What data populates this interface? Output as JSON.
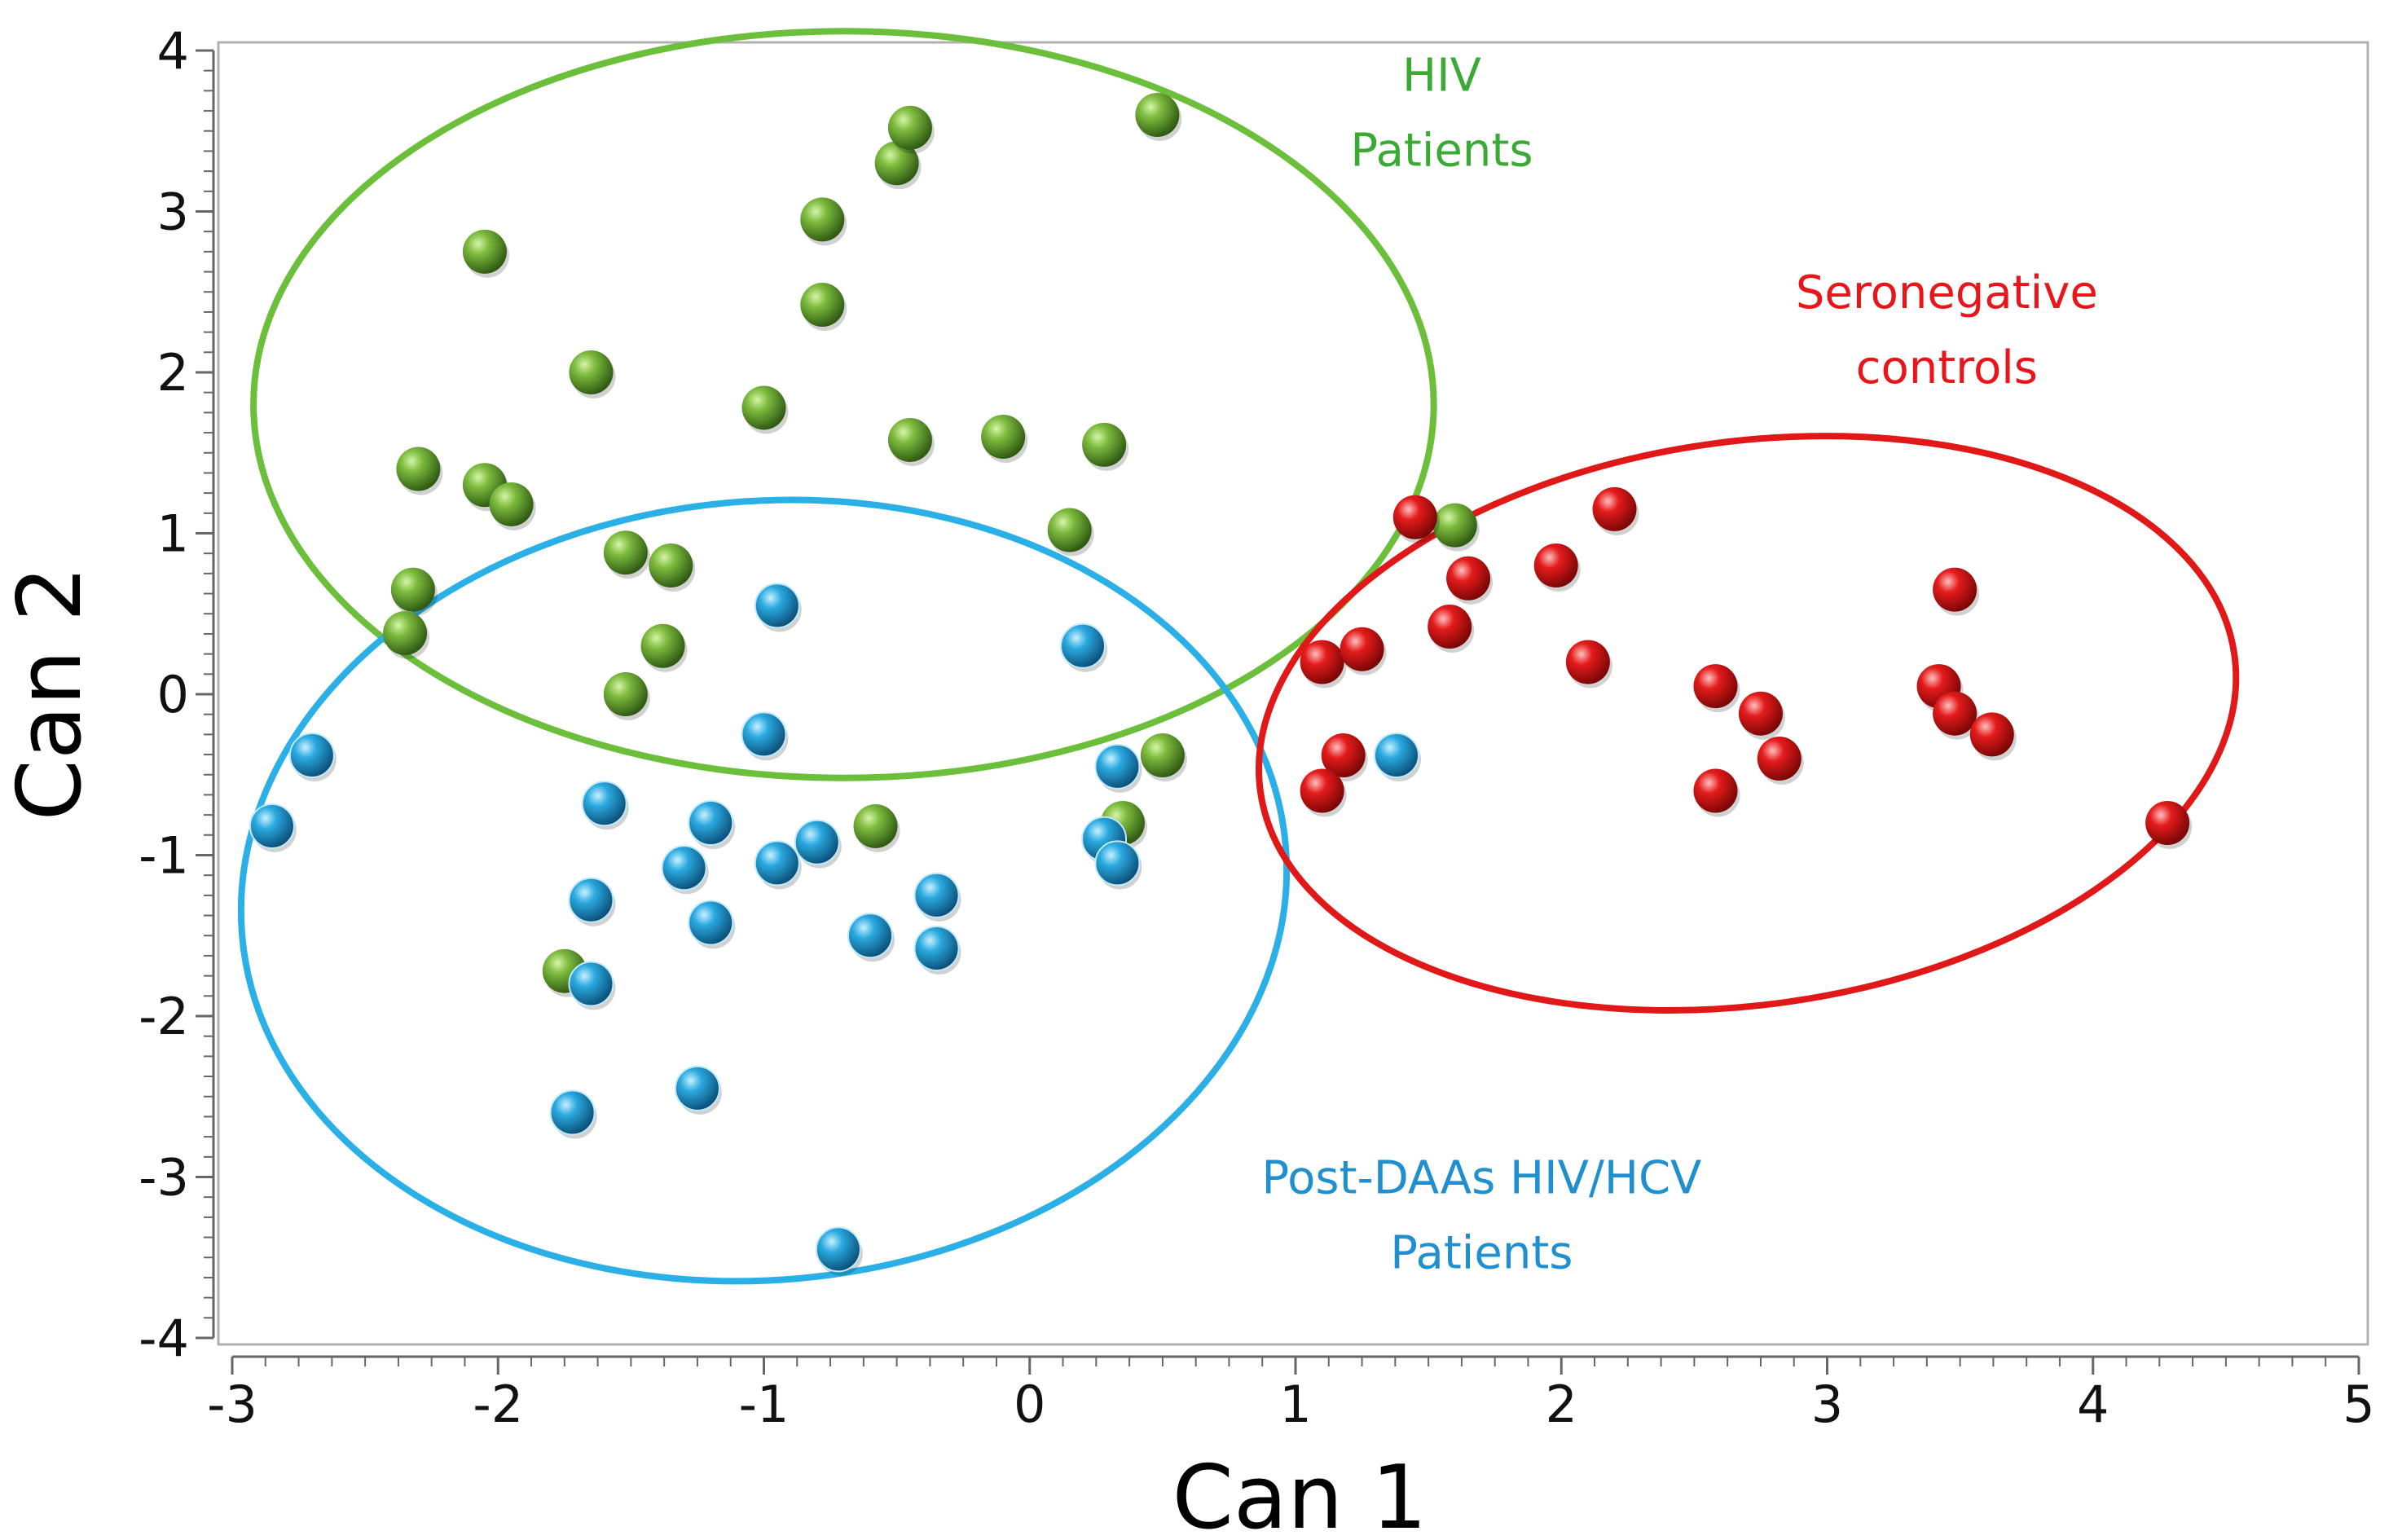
{
  "chart_data": {
    "type": "scatter",
    "xlabel": "Can 1",
    "ylabel": "Can 2",
    "xlim": [
      -3,
      5
    ],
    "ylim": [
      -4,
      4
    ],
    "xticks": [
      "-3",
      "-2",
      "-1",
      "0",
      "1",
      "2",
      "3",
      "4",
      "5"
    ],
    "yticks": [
      "4",
      "3",
      "2",
      "1",
      "0",
      "-1",
      "-2",
      "-3",
      "-4"
    ],
    "grid": false,
    "series": [
      {
        "name": "HIV Patients",
        "label_lines": [
          "HIV",
          "Patients"
        ],
        "color": "#5a9a2a",
        "label_color": "#3aaa35",
        "ellipse_color": "#6bbf3a",
        "points": [
          [
            -2.05,
            2.75
          ],
          [
            -1.65,
            2.0
          ],
          [
            -2.3,
            1.4
          ],
          [
            -2.05,
            1.3
          ],
          [
            -1.95,
            1.18
          ],
          [
            -2.32,
            0.65
          ],
          [
            -2.35,
            0.38
          ],
          [
            -1.52,
            0.88
          ],
          [
            -1.35,
            0.8
          ],
          [
            -1.38,
            0.3
          ],
          [
            -1.52,
            0.0
          ],
          [
            -1.0,
            1.78
          ],
          [
            -0.78,
            2.95
          ],
          [
            -0.78,
            2.42
          ],
          [
            -0.5,
            3.3
          ],
          [
            -0.45,
            3.52
          ],
          [
            -0.45,
            1.58
          ],
          [
            -0.1,
            1.6
          ],
          [
            0.28,
            1.55
          ],
          [
            0.15,
            1.02
          ],
          [
            0.48,
            3.6
          ],
          [
            1.6,
            1.05
          ],
          [
            0.5,
            -0.38
          ],
          [
            0.35,
            -0.8
          ],
          [
            -0.58,
            -0.82
          ],
          [
            -1.75,
            -1.72
          ]
        ]
      },
      {
        "name": "Post-DAAs HIV/HCV Patients",
        "label_lines": [
          "Post-DAAs HIV/HCV",
          "Patients"
        ],
        "color": "#1e9fd8",
        "label_color": "#1f8fd0",
        "ellipse_color": "#2ab0e6",
        "points": [
          [
            -2.7,
            -0.38
          ],
          [
            -2.85,
            -0.82
          ],
          [
            -1.6,
            -0.68
          ],
          [
            -1.65,
            -1.28
          ],
          [
            -1.65,
            -1.8
          ],
          [
            -1.72,
            -2.6
          ],
          [
            -1.3,
            -1.08
          ],
          [
            -1.2,
            -0.8
          ],
          [
            -1.2,
            -1.42
          ],
          [
            -1.25,
            -2.45
          ],
          [
            -0.95,
            0.55
          ],
          [
            -1.0,
            -0.25
          ],
          [
            -0.95,
            -1.05
          ],
          [
            -0.8,
            -0.92
          ],
          [
            -0.6,
            -1.5
          ],
          [
            -0.35,
            -1.25
          ],
          [
            -0.35,
            -1.58
          ],
          [
            -0.72,
            -3.45
          ],
          [
            0.2,
            0.3
          ],
          [
            0.28,
            -0.9
          ],
          [
            0.33,
            -0.45
          ],
          [
            0.33,
            -1.05
          ],
          [
            1.38,
            -0.38
          ]
        ]
      },
      {
        "name": "Seronegative controls",
        "label_lines": [
          "Seronegative",
          "controls"
        ],
        "color": "#d81a1a",
        "label_color": "#e8161b",
        "ellipse_color": "#e01818",
        "points": [
          [
            1.45,
            1.1
          ],
          [
            1.65,
            0.72
          ],
          [
            1.58,
            0.42
          ],
          [
            1.1,
            0.2
          ],
          [
            1.25,
            0.28
          ],
          [
            1.18,
            -0.38
          ],
          [
            1.1,
            -0.6
          ],
          [
            2.2,
            1.15
          ],
          [
            1.98,
            0.8
          ],
          [
            2.1,
            0.2
          ],
          [
            2.58,
            0.05
          ],
          [
            2.58,
            -0.6
          ],
          [
            2.75,
            -0.12
          ],
          [
            2.82,
            -0.4
          ],
          [
            3.48,
            0.65
          ],
          [
            3.42,
            0.05
          ],
          [
            3.48,
            -0.12
          ],
          [
            3.62,
            -0.25
          ],
          [
            4.28,
            -0.8
          ]
        ]
      }
    ],
    "ellipses": [
      {
        "series": "HIV Patients",
        "center": [
          -0.7,
          1.8
        ],
        "radii": [
          2.22,
          2.32
        ],
        "angle_deg": 0
      },
      {
        "series": "Post-DAAs HIV/HCV Patients",
        "center": [
          -1.0,
          -1.22
        ],
        "radii": [
          1.97,
          2.42
        ],
        "angle_deg": -5
      },
      {
        "series": "Seronegative controls",
        "center": [
          2.7,
          -0.18
        ],
        "radii": [
          1.85,
          1.75
        ],
        "angle_deg": -8
      }
    ]
  }
}
